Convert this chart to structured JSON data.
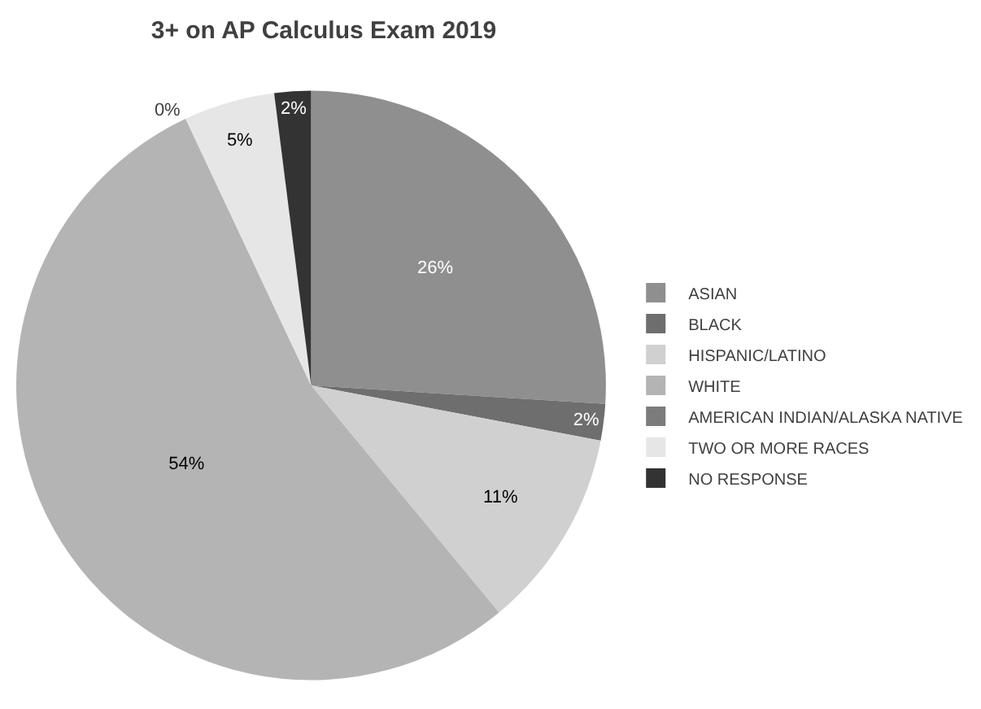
{
  "chart_data": {
    "type": "pie",
    "title": "3+ on AP Calculus Exam 2019",
    "categories": [
      "ASIAN",
      "BLACK",
      "HISPANIC/LATINO",
      "WHITE",
      "AMERICAN INDIAN/ALASKA NATIVE",
      "TWO OR MORE RACES",
      "NO RESPONSE"
    ],
    "values": [
      26,
      2,
      11,
      54,
      0,
      5,
      2
    ],
    "colors": [
      "#8f8f8f",
      "#6e6e6e",
      "#d0d0d0",
      "#b4b4b4",
      "#7c7c7c",
      "#e6e6e6",
      "#333333"
    ],
    "value_labels": [
      "26%",
      "2%",
      "11%",
      "54%",
      "0%",
      "5%",
      "2%"
    ],
    "legend": "right"
  }
}
